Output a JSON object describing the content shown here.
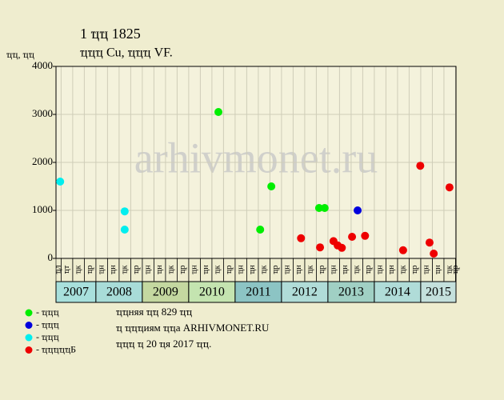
{
  "chart_data": {
    "type": "scatter",
    "title": "1 ҵҵ 1825",
    "subtitle": "ҵҵҵ Cu, ҵҵҵ VF.",
    "ylabel": "ҵҵ, ҵҵ",
    "watermark": "arhivmonet.ru",
    "xlim": [
      2007.14,
      2015.76
    ],
    "ylim": [
      0,
      4000
    ],
    "yticks": [
      0,
      1000,
      2000,
      3000,
      4000
    ],
    "grid": true,
    "year_bands": [
      2007,
      2008,
      2009,
      2010,
      2011,
      2012,
      2013,
      2014,
      2015
    ],
    "year_colors": [
      "#a8e0dc",
      "#a8dcd8",
      "#c4d8a0",
      "#c4e4b0",
      "#8cc4c4",
      "#b0dcd8",
      "#a0d0c4",
      "#b0dcd8",
      "#c4e0dc"
    ],
    "column_labels": [
      "ҵл",
      "ҵт",
      "ҵк",
      "ҵр",
      "ҵн",
      "ҵн",
      "ҵк",
      "ҵр",
      "ҵн",
      "ҵн",
      "ҵк",
      "ҵр",
      "ҵн",
      "ҵн",
      "ҵк",
      "ҵр",
      "ҵн",
      "ҵн",
      "ҵк",
      "ҵр",
      "ҵн",
      "ҵн",
      "ҵк",
      "ҵр",
      "ҵн",
      "ҵн",
      "ҵк",
      "ҵр",
      "ҵн",
      "ҵн",
      "ҵк",
      "ҵр",
      "ҵн",
      "ҵн",
      "ҵк",
      "ҵр"
    ],
    "series": [
      {
        "name": "- ҵҵҵ",
        "color": "#00ee00",
        "x": [
          2010.64,
          2011.54,
          2011.78,
          2012.81,
          2012.93
        ],
        "values": [
          3050,
          600,
          1500,
          1050,
          1050
        ]
      },
      {
        "name": "- ҵҵҵ",
        "color": "#0000dd",
        "x": [
          2013.64
        ],
        "values": [
          1000
        ]
      },
      {
        "name": "- ҵҵҵ",
        "color": "#00eeee",
        "x": [
          2007.23,
          2008.62,
          2008.62
        ],
        "values": [
          1600,
          980,
          600
        ]
      },
      {
        "name": "- ҵҵҵҵҵБ",
        "color": "#ee0000",
        "x": [
          2012.42,
          2012.83,
          2013.12,
          2013.21,
          2013.3,
          2013.52,
          2013.8,
          2014.62,
          2014.99,
          2015.19,
          2015.28,
          2015.62
        ],
        "values": [
          420,
          230,
          360,
          270,
          220,
          450,
          470,
          170,
          1930,
          330,
          100,
          1480
        ]
      }
    ],
    "notes": [
      "ҵҵняя ҵҵ 829 ҵҵ",
      "ҵ ҵҵҵиям ҵҵа ARHIVMONET.RU",
      "ҵҵҵ ҵ 20 ҵя 2017 ҵҵ."
    ]
  }
}
